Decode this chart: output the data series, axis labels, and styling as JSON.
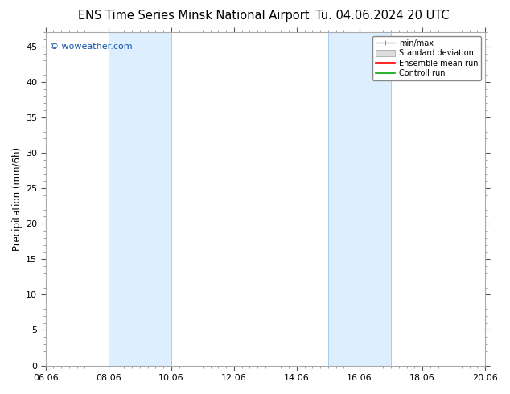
{
  "title_left": "ENS Time Series Minsk National Airport",
  "title_right": "Tu. 04.06.2024 20 UTC",
  "ylabel": "Precipitation (mm/6h)",
  "ylim": [
    0,
    47
  ],
  "yticks": [
    0,
    5,
    10,
    15,
    20,
    25,
    30,
    35,
    40,
    45
  ],
  "xtick_labels": [
    "06.06",
    "08.06",
    "10.06",
    "12.06",
    "14.06",
    "16.06",
    "18.06",
    "20.06"
  ],
  "xtick_positions": [
    0,
    2,
    4,
    6,
    8,
    10,
    12,
    14
  ],
  "x_total_days": 14,
  "shaded_bands": [
    {
      "x_start": 2.0,
      "x_end": 4.0
    },
    {
      "x_start": 9.0,
      "x_end": 11.0
    }
  ],
  "band_color": "#ddeeff",
  "band_edge_color": "#aaccee",
  "watermark": "© woweather.com",
  "watermark_color": "#1155aa",
  "watermark_fontsize": 8,
  "legend_labels": [
    "min/max",
    "Standard deviation",
    "Ensemble mean run",
    "Controll run"
  ],
  "legend_colors": [
    "#999999",
    "#cccccc",
    "#ff0000",
    "#00aa00"
  ],
  "background_color": "#ffffff",
  "plot_bg_color": "#ffffff",
  "border_color": "#aaaaaa",
  "title_fontsize": 10.5,
  "tick_fontsize": 8,
  "ylabel_fontsize": 8.5
}
